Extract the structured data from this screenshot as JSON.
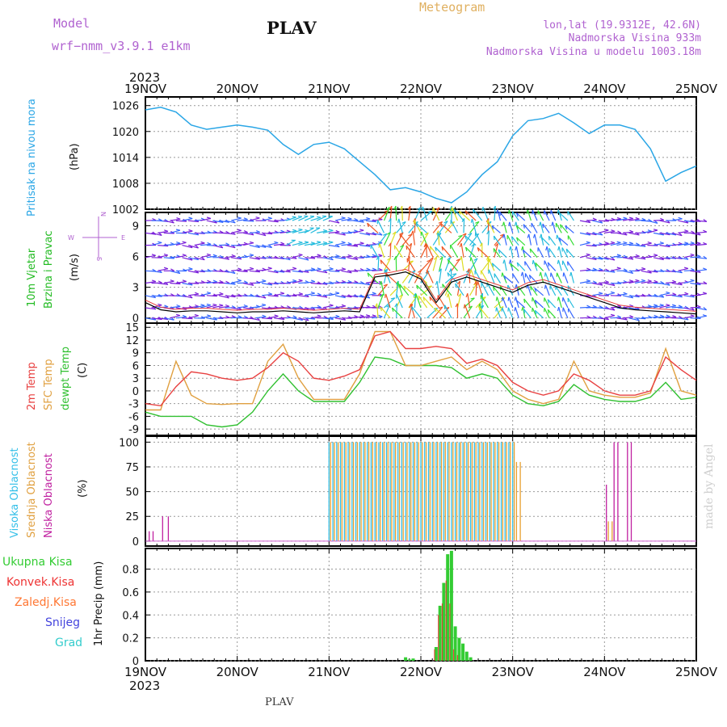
{
  "header": {
    "model_label": "Model",
    "model_version": "wrf−nmm_v3.9.1 e1km",
    "title": "PLAV",
    "subtitle": "Meteogram",
    "coords": "lon,lat (19.9312E, 42.6N)",
    "elevation": "Nadmorska Visina 933m",
    "model_elevation": "Nadmorska Visina u modelu 1003.18m"
  },
  "footer": {
    "location": "PLAV",
    "credit": "made by Angel"
  },
  "x_axis": {
    "year": "2023",
    "day_labels": [
      "19NOV",
      "20NOV",
      "21NOV",
      "22NOV",
      "23NOV",
      "24NOV",
      "25NOV"
    ]
  },
  "colors": {
    "pressure": "#2aa6e6",
    "temp2m": "#e84040",
    "sfc_temp": "#e0a040",
    "dewpt": "#30c030",
    "high_cloud": "#33bfe8",
    "mid_cloud": "#e8a030",
    "low_cloud": "#c020a0",
    "rain_total": "#33cc33",
    "rain_conv": "#ee3333",
    "freezing": "#ff7733",
    "snow": "#4444dd",
    "hail": "#33cccc",
    "wind_calm": "#7a1fd9",
    "wind_light": "#3366ff",
    "wind_mod": "#22bbdd",
    "wind_fresh": "#33dd33",
    "wind_strong": "#dddd22",
    "wind_gale": "#ee5522"
  },
  "panels": {
    "pressure": {
      "label1": "Pritisak na nivou mora",
      "unit": "(hPa)"
    },
    "wind": {
      "label1": "10m Vjetar",
      "label2": "Brzina i Pravac",
      "unit": "(m/s)",
      "compass_n": "N",
      "compass_w": "W",
      "compass_e": "E",
      "compass_s": "S"
    },
    "temp": {
      "label1": "2m Temp",
      "label2": "SFC Temp",
      "label3": "dewpt Temp",
      "unit": "(C)"
    },
    "cloud": {
      "label1": "Visoka Oblacnost",
      "label2": "Srednja Oblacnost",
      "label3": "Niska Oblacnost",
      "unit": "(%)"
    },
    "precip": {
      "label1": "Ukupna Kisa",
      "label2": "Konvek.Kisa",
      "label3": "Zaledj.Kisa",
      "label4": "Snijeg",
      "label5": "Grad",
      "unit": "1hr Precip (mm)"
    }
  },
  "chart_data": [
    {
      "type": "line",
      "ylabel": "(hPa)",
      "ylim": [
        1002,
        1026
      ],
      "yticks": [
        1002,
        1008,
        1014,
        1020,
        1026
      ],
      "x_hours": [
        0,
        4,
        8,
        12,
        16,
        20,
        24,
        28,
        32,
        36,
        40,
        44,
        48,
        52,
        56,
        60,
        64,
        68,
        72,
        76,
        80,
        84,
        88,
        92,
        96,
        100,
        104,
        108,
        112,
        116,
        120,
        124,
        128,
        132,
        136,
        140,
        144
      ],
      "series": [
        {
          "values": [
            1025,
            1025.6,
            1024.5,
            1021.5,
            1020.5,
            1021,
            1021.5,
            1021,
            1020.3,
            1017,
            1014.7,
            1017,
            1017.5,
            1016,
            1013,
            1010,
            1006.5,
            1007,
            1006,
            1004.5,
            1003.5,
            1006,
            1010,
            1013,
            1019,
            1022.5,
            1023,
            1024.2,
            1022,
            1019.5,
            1021.5,
            1021.5,
            1020.5,
            1016,
            1008.5,
            1010.5,
            1012
          ]
        }
      ]
    },
    {
      "type": "line",
      "ylabel": "(m/s)",
      "ylim": [
        -0.5,
        10
      ],
      "yticks": [
        0,
        3,
        6,
        9
      ],
      "x_hours": [
        0,
        4,
        8,
        12,
        16,
        20,
        24,
        28,
        32,
        36,
        40,
        44,
        48,
        52,
        56,
        60,
        64,
        68,
        72,
        76,
        80,
        84,
        88,
        92,
        96,
        100,
        104,
        108,
        112,
        116,
        120,
        124,
        128,
        132,
        136,
        140,
        144
      ],
      "series": [
        {
          "values": [
            1.5,
            0.8,
            0.6,
            0.7,
            0.7,
            0.6,
            0.5,
            0.6,
            0.6,
            0.7,
            0.6,
            0.5,
            0.6,
            0.7,
            0.6,
            4.0,
            4.2,
            4.5,
            3.8,
            1.5,
            3.5,
            4.0,
            3.5,
            3.0,
            2.5,
            3.2,
            3.5,
            3.0,
            2.5,
            2.0,
            1.5,
            1.0,
            0.8,
            0.7,
            0.6,
            0.5,
            0.4
          ]
        }
      ]
    },
    {
      "type": "line",
      "ylabel": "(C)",
      "ylim": [
        -10,
        16
      ],
      "yticks": [
        -9,
        -6,
        -3,
        0,
        3,
        6,
        9,
        12,
        15
      ],
      "x_hours": [
        0,
        4,
        8,
        12,
        16,
        20,
        24,
        28,
        32,
        36,
        40,
        44,
        48,
        52,
        56,
        60,
        64,
        68,
        72,
        76,
        80,
        84,
        88,
        92,
        96,
        100,
        104,
        108,
        112,
        116,
        120,
        124,
        128,
        132,
        136,
        140,
        144
      ],
      "series": [
        {
          "name": "2m Temp",
          "values": [
            -3,
            -3.5,
            1,
            4.5,
            4,
            3,
            2.5,
            3,
            5.5,
            9,
            7,
            3,
            2.5,
            3.5,
            5,
            13,
            14,
            10,
            10,
            10.5,
            10,
            6.5,
            7.5,
            6,
            2,
            0,
            -1,
            0,
            4,
            2.5,
            0,
            -1,
            -1,
            0,
            8,
            5,
            2.5
          ]
        },
        {
          "name": "SFC Temp",
          "values": [
            -4.5,
            -4.5,
            7,
            -1,
            -3,
            -3.2,
            -3,
            -3,
            7,
            11,
            3,
            -2,
            -2,
            -2,
            4,
            14,
            14,
            6,
            6,
            7,
            8,
            5,
            7,
            5,
            0,
            -2,
            -3,
            -2,
            7,
            0,
            -1,
            -1.5,
            -1.5,
            -0.5,
            10,
            0,
            -1
          ]
        },
        {
          "name": "dewpt Temp",
          "values": [
            -5,
            -6,
            -6,
            -6,
            -8,
            -8.5,
            -8,
            -5,
            0,
            4,
            0,
            -2.5,
            -2.5,
            -2.5,
            2,
            8,
            7.5,
            6,
            6,
            6,
            5.5,
            3,
            4,
            3,
            -1,
            -3,
            -3.5,
            -2.5,
            1.5,
            -1,
            -2,
            -2.5,
            -2.5,
            -1.5,
            2,
            -2,
            -1.5
          ]
        }
      ]
    },
    {
      "type": "bar",
      "ylabel": "(%)",
      "ylim": [
        0,
        100
      ],
      "yticks": [
        0,
        25,
        50,
        75,
        100
      ],
      "series": [
        {
          "name": "Visoka Oblacnost",
          "segments": [
            [
              48,
              96,
              1,
              100
            ]
          ]
        },
        {
          "name": "Srednja Oblacnost",
          "segments": [
            [
              48.4,
              96.4,
              1,
              100
            ],
            [
              97,
              98,
              1,
              80
            ],
            [
              121,
              122,
              1,
              20
            ]
          ]
        },
        {
          "name": "Niska Oblacnost",
          "segments": [
            [
              1,
              2,
              1,
              10
            ],
            [
              4.5,
              6,
              1.5,
              25
            ],
            [
              120.5,
              121,
              1,
              57
            ],
            [
              122.5,
              124,
              1,
              100
            ],
            [
              126,
              127,
              1,
              100
            ]
          ]
        }
      ]
    },
    {
      "type": "bar",
      "ylabel": "1hr Precip (mm)",
      "ylim": [
        0,
        1.0
      ],
      "yticks": [
        0,
        0.2,
        0.4,
        0.6,
        0.8
      ],
      "x_hours": [
        68,
        69,
        70,
        76,
        77,
        78,
        79,
        80,
        81,
        82,
        83,
        84,
        85
      ],
      "series": [
        {
          "name": "Ukupna Kisa",
          "values": [
            0.03,
            0.01,
            0.02,
            0.12,
            0.48,
            0.68,
            0.93,
            0.96,
            0.3,
            0.2,
            0.15,
            0.08,
            0.03
          ]
        },
        {
          "name": "Konvek.Kisa",
          "values": [
            0,
            0,
            0,
            0.1,
            0.4,
            0.5,
            0.7,
            0.5,
            0.1,
            0.05,
            0,
            0,
            0
          ]
        }
      ]
    }
  ]
}
